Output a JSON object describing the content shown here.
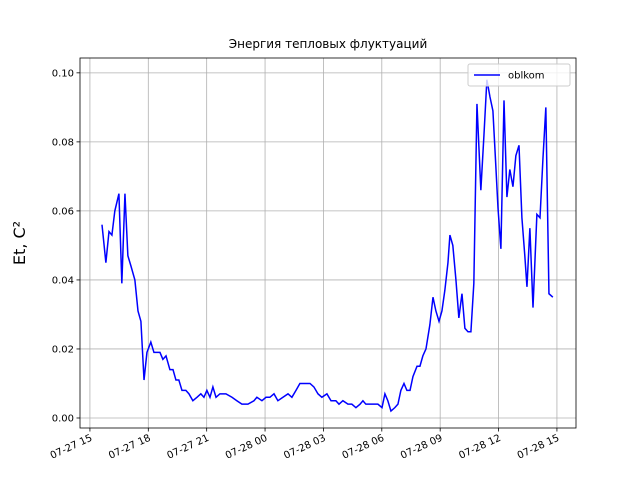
{
  "chart_data": {
    "type": "line",
    "title": "Энергия тепловых флуктуаций",
    "y_label": "Et, C²",
    "grid": true,
    "legend_position": "upper right",
    "xlim": [
      14.49,
      39.98
    ],
    "ylim": [
      -0.0029,
      0.1043
    ],
    "xticks": [
      {
        "value": 15,
        "label": "07-27 15"
      },
      {
        "value": 18,
        "label": "07-27 18"
      },
      {
        "value": 21,
        "label": "07-27 21"
      },
      {
        "value": 24,
        "label": "07-28 00"
      },
      {
        "value": 27,
        "label": "07-28 03"
      },
      {
        "value": 30,
        "label": "07-28 06"
      },
      {
        "value": 33,
        "label": "07-28 09"
      },
      {
        "value": 36,
        "label": "07-28 12"
      },
      {
        "value": 39,
        "label": "07-28 15"
      }
    ],
    "yticks": [
      {
        "value": 0,
        "label": "0.00"
      },
      {
        "value": 0.02,
        "label": "0.02"
      },
      {
        "value": 0.04,
        "label": "0.04"
      },
      {
        "value": 0.06,
        "label": "0.06"
      },
      {
        "value": 0.08,
        "label": "0.08"
      },
      {
        "value": 0.1,
        "label": "0.10"
      }
    ],
    "x": [
      15.62,
      15.82,
      15.98,
      16.13,
      16.28,
      16.49,
      16.64,
      16.8,
      16.95,
      17.11,
      17.31,
      17.47,
      17.62,
      17.78,
      17.93,
      18.13,
      18.29,
      18.44,
      18.6,
      18.75,
      18.91,
      19.11,
      19.27,
      19.42,
      19.57,
      19.73,
      19.93,
      20.09,
      20.29,
      20.5,
      20.7,
      20.86,
      21.01,
      21.17,
      21.32,
      21.48,
      21.68,
      21.99,
      22.3,
      22.55,
      22.81,
      23.12,
      23.43,
      23.58,
      23.84,
      24.05,
      24.25,
      24.46,
      24.66,
      24.92,
      25.18,
      25.38,
      25.59,
      25.79,
      26.05,
      26.31,
      26.51,
      26.72,
      26.92,
      27.18,
      27.39,
      27.64,
      27.8,
      28.0,
      28.26,
      28.46,
      28.67,
      28.88,
      29.03,
      29.18,
      29.39,
      29.6,
      29.8,
      30.01,
      30.16,
      30.31,
      30.47,
      30.67,
      30.83,
      30.98,
      31.14,
      31.29,
      31.45,
      31.6,
      31.81,
      31.96,
      32.11,
      32.27,
      32.47,
      32.63,
      32.78,
      32.94,
      33.09,
      33.24,
      33.4,
      33.5,
      33.65,
      33.81,
      33.96,
      34.12,
      34.27,
      34.43,
      34.58,
      34.73,
      34.89,
      35.09,
      35.25,
      35.4,
      35.56,
      35.71,
      35.86,
      35.97,
      36.12,
      36.28,
      36.43,
      36.58,
      36.74,
      36.89,
      37.05,
      37.2,
      37.35,
      37.46,
      37.61,
      37.77,
      37.97,
      38.13,
      38.28,
      38.43,
      38.59,
      38.79
    ],
    "series": [
      {
        "name": "oblkom",
        "color": "#0000ff",
        "values": [
          0.056,
          0.045,
          0.054,
          0.053,
          0.06,
          0.065,
          0.039,
          0.065,
          0.047,
          0.044,
          0.04,
          0.031,
          0.028,
          0.011,
          0.019,
          0.022,
          0.019,
          0.019,
          0.019,
          0.017,
          0.018,
          0.014,
          0.014,
          0.011,
          0.011,
          0.008,
          0.008,
          0.007,
          0.005,
          0.006,
          0.007,
          0.006,
          0.008,
          0.006,
          0.009,
          0.006,
          0.007,
          0.007,
          0.006,
          0.005,
          0.004,
          0.004,
          0.005,
          0.006,
          0.005,
          0.006,
          0.006,
          0.007,
          0.005,
          0.006,
          0.007,
          0.006,
          0.008,
          0.01,
          0.01,
          0.01,
          0.009,
          0.007,
          0.006,
          0.007,
          0.005,
          0.005,
          0.004,
          0.005,
          0.004,
          0.004,
          0.003,
          0.004,
          0.005,
          0.004,
          0.004,
          0.004,
          0.004,
          0.003,
          0.007,
          0.005,
          0.002,
          0.003,
          0.004,
          0.008,
          0.01,
          0.008,
          0.008,
          0.012,
          0.015,
          0.015,
          0.018,
          0.02,
          0.027,
          0.035,
          0.031,
          0.028,
          0.031,
          0.037,
          0.045,
          0.053,
          0.05,
          0.04,
          0.029,
          0.036,
          0.026,
          0.025,
          0.025,
          0.039,
          0.091,
          0.066,
          0.082,
          0.098,
          0.093,
          0.089,
          0.073,
          0.061,
          0.049,
          0.092,
          0.064,
          0.072,
          0.067,
          0.076,
          0.079,
          0.058,
          0.047,
          0.038,
          0.055,
          0.032,
          0.059,
          0.058,
          0.075,
          0.09,
          0.036,
          0.035
        ]
      }
    ]
  }
}
